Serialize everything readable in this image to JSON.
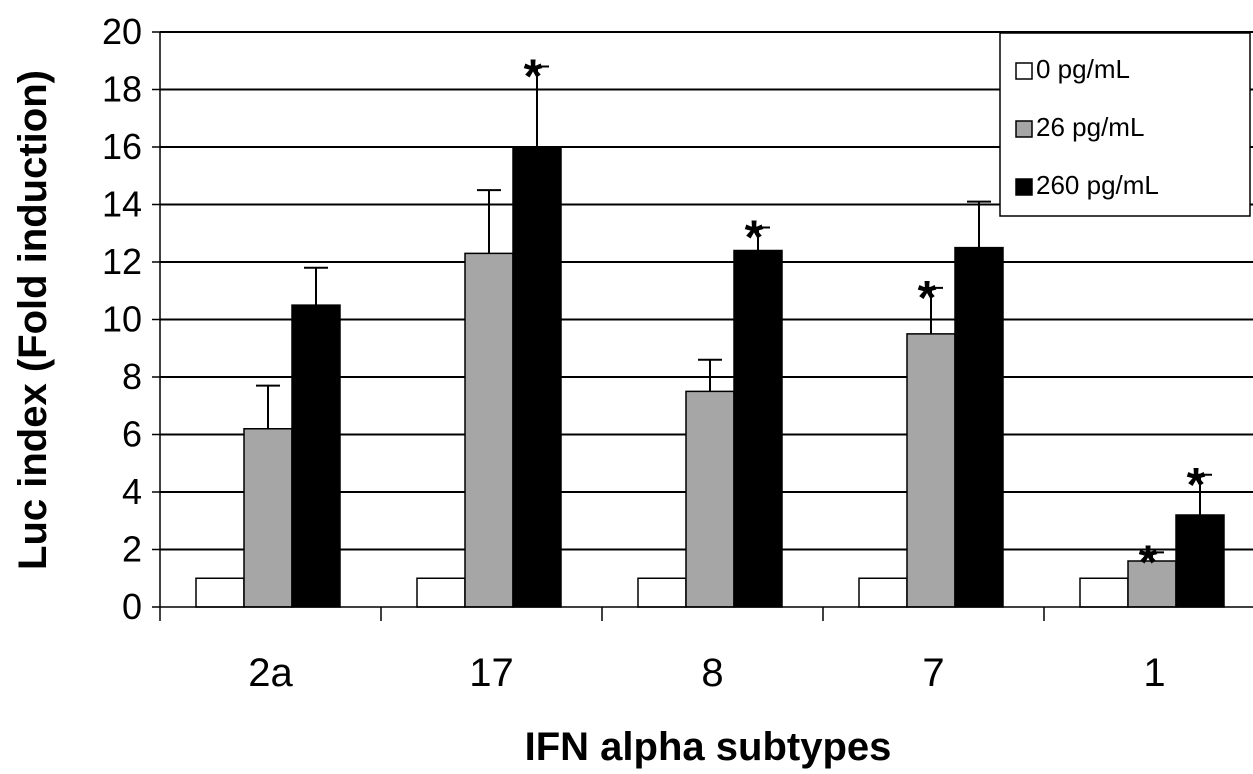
{
  "chart_data": {
    "type": "bar",
    "title": "",
    "xlabel": "IFN alpha subtypes",
    "ylabel": "Luc index (Fold induction)",
    "ylim": [
      0,
      20
    ],
    "yticks": [
      0,
      2,
      4,
      6,
      8,
      10,
      12,
      14,
      16,
      18,
      20
    ],
    "grid": true,
    "legend_position": "top-right",
    "categories": [
      "2a",
      "17",
      "8",
      "7",
      "1"
    ],
    "series": [
      {
        "name": "0 pg/mL",
        "color": "#ffffff",
        "values": [
          1,
          1,
          1,
          1,
          1
        ],
        "errors": [
          null,
          null,
          null,
          null,
          null
        ],
        "significant": [
          false,
          false,
          false,
          false,
          false
        ]
      },
      {
        "name": "26 pg/mL",
        "color": "#a6a6a6",
        "values": [
          6.2,
          12.3,
          7.5,
          9.5,
          1.6
        ],
        "errors": [
          1.5,
          2.2,
          1.1,
          1.6,
          0.3
        ],
        "significant": [
          false,
          false,
          false,
          true,
          true
        ]
      },
      {
        "name": "260 pg/mL",
        "color": "#000000",
        "values": [
          10.5,
          16.0,
          12.4,
          12.5,
          3.2
        ],
        "errors": [
          1.3,
          2.8,
          0.8,
          1.6,
          1.4
        ],
        "significant": [
          false,
          true,
          true,
          false,
          true
        ]
      }
    ],
    "significance_marker": "*"
  }
}
